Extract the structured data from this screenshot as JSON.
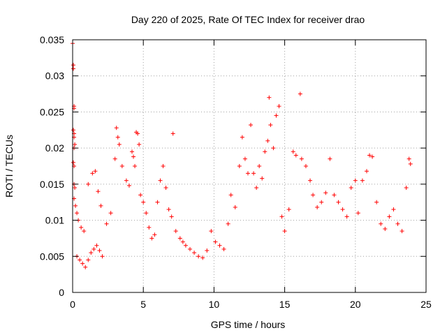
{
  "chart_data": {
    "type": "scatter",
    "title": "Day 220 of 2025, Rate Of TEC Index for receiver drao",
    "xlabel": "GPS time / hours",
    "ylabel": "ROTI / TECUs",
    "xlim": [
      0,
      25
    ],
    "ylim": [
      0,
      0.035
    ],
    "xticks": [
      0,
      5,
      10,
      15,
      20,
      25
    ],
    "xtick_labels": [
      "0",
      "5",
      "10",
      "15",
      "20",
      "25"
    ],
    "yticks": [
      0,
      0.005,
      0.01,
      0.015,
      0.02,
      0.025,
      0.03,
      0.035
    ],
    "ytick_labels": [
      "0",
      "0.005",
      "0.01",
      "0.015",
      "0.02",
      "0.025",
      "0.03",
      "0.035"
    ],
    "grid": true,
    "marker": "+",
    "color": "#ff0000",
    "series": [
      {
        "values_note": "",
        "points": [
          [
            0.0,
            0.0345
          ],
          [
            0.05,
            0.0315
          ],
          [
            0.05,
            0.031
          ],
          [
            0.1,
            0.0258
          ],
          [
            0.1,
            0.0255
          ],
          [
            0.05,
            0.0225
          ],
          [
            0.1,
            0.022
          ],
          [
            0.1,
            0.0215
          ],
          [
            0.15,
            0.0205
          ],
          [
            0.1,
            0.02
          ],
          [
            0.05,
            0.018
          ],
          [
            0.1,
            0.0175
          ],
          [
            0.1,
            0.015
          ],
          [
            0.15,
            0.0145
          ],
          [
            0.1,
            0.013
          ],
          [
            0.2,
            0.012
          ],
          [
            0.3,
            0.011
          ],
          [
            0.4,
            0.01
          ],
          [
            0.6,
            0.009
          ],
          [
            0.8,
            0.0085
          ],
          [
            0.3,
            0.005
          ],
          [
            0.5,
            0.0045
          ],
          [
            0.7,
            0.004
          ],
          [
            0.9,
            0.0035
          ],
          [
            1.1,
            0.0045
          ],
          [
            1.3,
            0.0055
          ],
          [
            1.5,
            0.006
          ],
          [
            1.7,
            0.0065
          ],
          [
            1.9,
            0.0058
          ],
          [
            2.1,
            0.005
          ],
          [
            1.1,
            0.015
          ],
          [
            1.4,
            0.0165
          ],
          [
            1.6,
            0.0168
          ],
          [
            1.8,
            0.014
          ],
          [
            2.0,
            0.012
          ],
          [
            2.4,
            0.0095
          ],
          [
            2.7,
            0.011
          ],
          [
            3.0,
            0.0185
          ],
          [
            3.1,
            0.0228
          ],
          [
            3.2,
            0.0215
          ],
          [
            3.3,
            0.0205
          ],
          [
            3.5,
            0.0175
          ],
          [
            3.8,
            0.0155
          ],
          [
            4.0,
            0.0148
          ],
          [
            4.2,
            0.0195
          ],
          [
            4.3,
            0.0188
          ],
          [
            4.4,
            0.0175
          ],
          [
            4.5,
            0.0222
          ],
          [
            4.6,
            0.022
          ],
          [
            4.7,
            0.0205
          ],
          [
            4.8,
            0.0135
          ],
          [
            5.0,
            0.0125
          ],
          [
            5.2,
            0.011
          ],
          [
            5.4,
            0.009
          ],
          [
            5.6,
            0.0075
          ],
          [
            5.8,
            0.008
          ],
          [
            6.0,
            0.0125
          ],
          [
            6.2,
            0.0155
          ],
          [
            6.4,
            0.0175
          ],
          [
            6.6,
            0.0145
          ],
          [
            6.8,
            0.0115
          ],
          [
            7.0,
            0.0105
          ],
          [
            7.1,
            0.022
          ],
          [
            7.3,
            0.0085
          ],
          [
            7.6,
            0.0075
          ],
          [
            7.8,
            0.007
          ],
          [
            8.0,
            0.0065
          ],
          [
            8.3,
            0.006
          ],
          [
            8.6,
            0.0055
          ],
          [
            8.9,
            0.005
          ],
          [
            9.2,
            0.0048
          ],
          [
            9.5,
            0.0058
          ],
          [
            9.8,
            0.0085
          ],
          [
            10.1,
            0.007
          ],
          [
            10.4,
            0.0065
          ],
          [
            10.7,
            0.006
          ],
          [
            11.0,
            0.0095
          ],
          [
            11.2,
            0.0135
          ],
          [
            11.5,
            0.0118
          ],
          [
            11.8,
            0.0175
          ],
          [
            12.0,
            0.0215
          ],
          [
            12.2,
            0.0185
          ],
          [
            12.4,
            0.0165
          ],
          [
            12.6,
            0.0232
          ],
          [
            12.8,
            0.0165
          ],
          [
            13.0,
            0.0145
          ],
          [
            13.2,
            0.0175
          ],
          [
            13.4,
            0.0158
          ],
          [
            13.6,
            0.0195
          ],
          [
            13.8,
            0.021
          ],
          [
            13.9,
            0.027
          ],
          [
            14.0,
            0.0232
          ],
          [
            14.2,
            0.02
          ],
          [
            14.4,
            0.0245
          ],
          [
            14.6,
            0.0258
          ],
          [
            14.8,
            0.0105
          ],
          [
            15.0,
            0.0085
          ],
          [
            15.3,
            0.0115
          ],
          [
            15.6,
            0.0195
          ],
          [
            15.8,
            0.019
          ],
          [
            16.1,
            0.0275
          ],
          [
            16.2,
            0.0185
          ],
          [
            16.5,
            0.0175
          ],
          [
            16.8,
            0.0155
          ],
          [
            17.0,
            0.0135
          ],
          [
            17.3,
            0.0118
          ],
          [
            17.6,
            0.0125
          ],
          [
            17.9,
            0.0138
          ],
          [
            18.2,
            0.0185
          ],
          [
            18.5,
            0.0135
          ],
          [
            18.8,
            0.0125
          ],
          [
            19.1,
            0.0115
          ],
          [
            19.4,
            0.0105
          ],
          [
            19.7,
            0.0145
          ],
          [
            20.0,
            0.0155
          ],
          [
            20.2,
            0.011
          ],
          [
            20.5,
            0.0155
          ],
          [
            20.8,
            0.0168
          ],
          [
            21.0,
            0.019
          ],
          [
            21.2,
            0.0188
          ],
          [
            21.5,
            0.0125
          ],
          [
            21.8,
            0.0095
          ],
          [
            22.1,
            0.0088
          ],
          [
            22.4,
            0.0105
          ],
          [
            22.7,
            0.0115
          ],
          [
            23.0,
            0.0095
          ],
          [
            23.3,
            0.0085
          ],
          [
            23.6,
            0.0145
          ],
          [
            23.8,
            0.0185
          ],
          [
            23.9,
            0.0178
          ]
        ]
      }
    ]
  }
}
